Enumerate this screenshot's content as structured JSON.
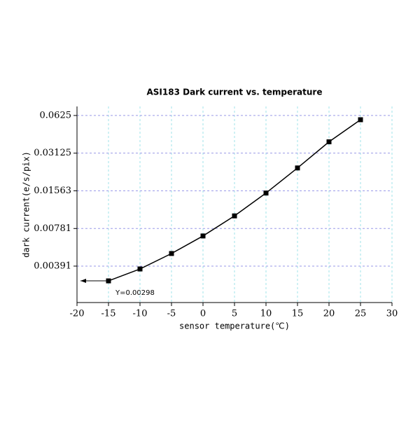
{
  "chart_data": {
    "type": "line",
    "title": "ASI183 Dark current vs. temperature",
    "xlabel": "sensor temperature(℃)",
    "ylabel": "dark current(e/s/pix)",
    "x": [
      -15,
      -10,
      -5,
      0,
      5,
      10,
      15,
      20,
      25
    ],
    "series": [
      {
        "name": "dark current",
        "color": "#000000",
        "values": [
          0.00298,
          0.00371,
          0.00493,
          0.00681,
          0.00985,
          0.015,
          0.0238,
          0.0385,
          0.0578
        ]
      }
    ],
    "xlim": [
      -20,
      30
    ],
    "xticks": [
      -20,
      -15,
      -10,
      -5,
      0,
      5,
      10,
      15,
      20,
      25,
      30
    ],
    "ylim": [
      0.002,
      0.0738
    ],
    "yticks": [
      0.00391,
      0.00781,
      0.01563,
      0.03125,
      0.0625
    ],
    "yscale": "log",
    "grid": true,
    "annotation": "Y=0.00298"
  }
}
